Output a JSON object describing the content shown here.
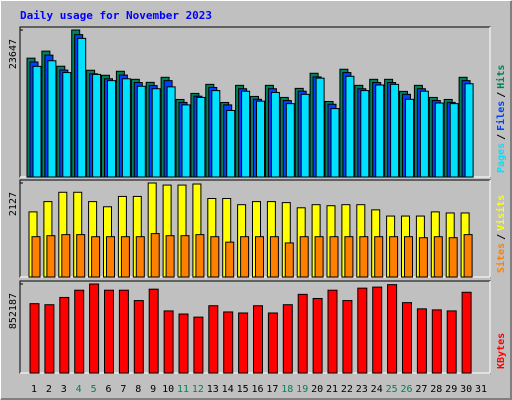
{
  "chart_data": [
    {
      "type": "bar",
      "title": "Daily usage for November 2023",
      "legend_separator": "/",
      "ylim": [
        0,
        23647
      ],
      "yticks": [
        23647
      ],
      "series": [
        {
          "name": "Hits",
          "color": "#00805c",
          "values": [
            19116,
            20250,
            17820,
            23647,
            17172,
            16362,
            17010,
            15714,
            15228,
            16038,
            12474,
            13446,
            14904,
            11988,
            14742,
            12960,
            14742,
            12798,
            14256,
            16686,
            12150,
            17334,
            14742,
            15714,
            15714,
            13770,
            14742,
            12798,
            12474,
            16038,
            null
          ]
        },
        {
          "name": "Files",
          "color": "#0040ff",
          "values": [
            18500,
            19600,
            17200,
            22900,
            16600,
            15800,
            16400,
            15200,
            14700,
            15500,
            12000,
            13000,
            14400,
            11600,
            14200,
            12500,
            14200,
            12300,
            13800,
            16100,
            11700,
            16800,
            14200,
            15200,
            15200,
            13300,
            14200,
            12300,
            12000,
            15500,
            null
          ]
        },
        {
          "name": "Pages",
          "color": "#00e0ff",
          "values": [
            17800,
            18700,
            16800,
            22300,
            16500,
            15500,
            15800,
            14600,
            14200,
            14500,
            11600,
            12800,
            13900,
            10700,
            13800,
            12200,
            13600,
            11800,
            13300,
            15900,
            11000,
            16200,
            13900,
            14800,
            14900,
            12500,
            13800,
            11900,
            11800,
            15000,
            null
          ]
        }
      ]
    },
    {
      "type": "bar",
      "ylim": [
        0,
        2127
      ],
      "yticks": [
        2127
      ],
      "series": [
        {
          "name": "Visits",
          "color": "#ffff00",
          "values": [
            1473,
            1706,
            1917,
            1917,
            1706,
            1589,
            1823,
            1823,
            2127,
            2080,
            2080,
            2104,
            1776,
            1776,
            1636,
            1706,
            1706,
            1683,
            1566,
            1636,
            1613,
            1636,
            1636,
            1519,
            1379,
            1379,
            1379,
            1473,
            1449,
            1449,
            null
          ]
        },
        {
          "name": "Sites",
          "color": "#ff8000",
          "values": [
            912,
            935,
            959,
            959,
            912,
            912,
            912,
            912,
            982,
            935,
            935,
            959,
            912,
            789,
            912,
            912,
            912,
            771,
            912,
            912,
            912,
            912,
            912,
            912,
            912,
            912,
            889,
            912,
            889,
            959,
            null
          ]
        }
      ]
    },
    {
      "type": "bar",
      "ylim": [
        0,
        852187
      ],
      "yticks": [
        852187
      ],
      "categories": [
        "1",
        "2",
        "3",
        "4",
        "5",
        "6",
        "7",
        "8",
        "9",
        "10",
        "11",
        "12",
        "13",
        "14",
        "15",
        "16",
        "17",
        "18",
        "19",
        "20",
        "21",
        "22",
        "23",
        "24",
        "25",
        "26",
        "27",
        "28",
        "29",
        "30",
        "31"
      ],
      "weekend_indices": [
        3,
        4,
        10,
        11,
        17,
        18,
        24,
        25
      ],
      "weekend_color": "#00805c",
      "series": [
        {
          "name": "KBytes",
          "color": "#ff0000",
          "values": [
            663903,
            653994,
            723357,
            792720,
            852187,
            792720,
            792720,
            693630,
            802629,
            594540,
            564813,
            535086,
            644085,
            584631,
            574722,
            644085,
            574722,
            653994,
            753084,
            713448,
            792720,
            693630,
            812538,
            822447,
            846000,
            673812,
            614358,
            604449,
            594540,
            772902,
            null
          ]
        }
      ]
    }
  ]
}
